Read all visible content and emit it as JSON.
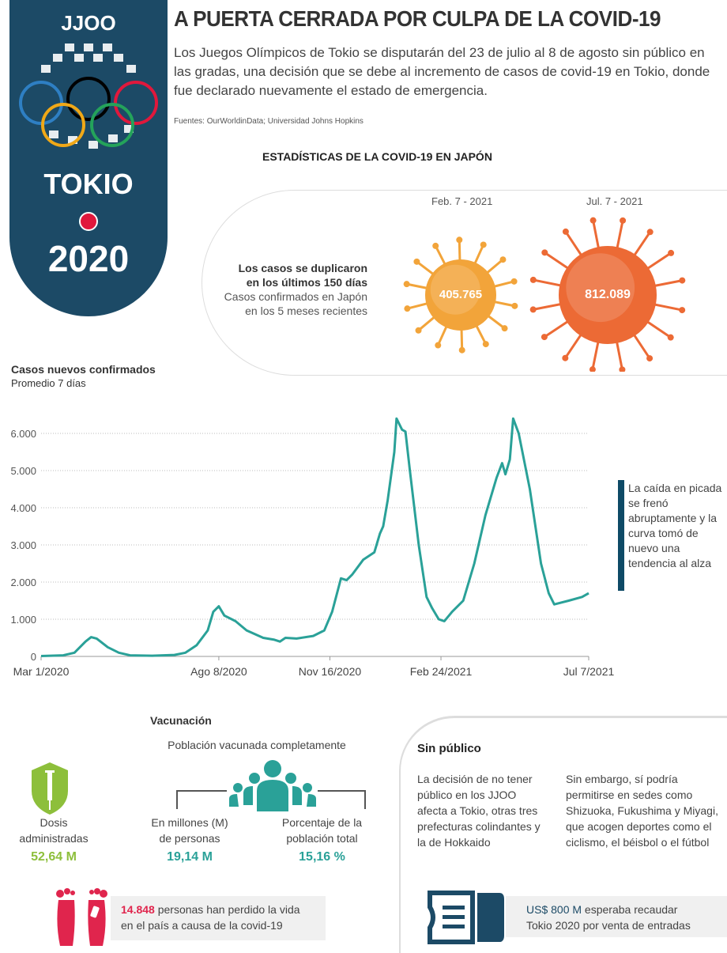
{
  "logo": {
    "top": "JJOO",
    "city": "TOKIO",
    "year": "2020",
    "ring_colors": [
      "#2e7fc3",
      "#000000",
      "#e0183c",
      "#f0a817",
      "#24a35a"
    ]
  },
  "header": {
    "title": "A PUERTA CERRADA POR CULPA DE LA COVID-19",
    "intro": "Los Juegos Olímpicos de Tokio se disputarán del 23 de julio al 8 de agosto sin público en las gradas, una decisión que se debe al incremento de casos de covid-19 en Tokio, donde fue declarado nuevamente el estado de emergencia.",
    "sources": "Fuentes: OurWorldinData; Universidad Johns Hopkins"
  },
  "stats": {
    "title": "ESTADÍSTICAS DE LA COVID-19 EN JAPÓN",
    "headline1": "Los casos se duplicaron",
    "headline2": "en los últimos 150 días",
    "desc1": "Casos confirmados en Japón",
    "desc2": "en los 5 meses recientes",
    "virus": [
      {
        "date": "Feb. 7 - 2021",
        "value": "405.765",
        "color": "#f2a43a"
      },
      {
        "date": "Jul. 7 - 2021",
        "value": "812.089",
        "color": "#ec6a35"
      }
    ]
  },
  "chart_data": {
    "type": "line",
    "title": "Casos nuevos confirmados",
    "subtitle": "Promedio 7 días",
    "x_unit": "days since Mar 1/2020",
    "x_ticks": [
      {
        "day": 0,
        "label": "Mar 1/2020"
      },
      {
        "day": 160,
        "label": "Ago 8/2020"
      },
      {
        "day": 260,
        "label": "Nov 16/2020"
      },
      {
        "day": 360,
        "label": "Feb 24/2021"
      },
      {
        "day": 493,
        "label": "Jul 7/2021"
      }
    ],
    "y_ticks": [
      {
        "v": 0,
        "label": "0"
      },
      {
        "v": 1000,
        "label": "1.000"
      },
      {
        "v": 2000,
        "label": "2.000"
      },
      {
        "v": 3000,
        "label": "3.000"
      },
      {
        "v": 4000,
        "label": "4.000"
      },
      {
        "v": 5000,
        "label": "5.000"
      },
      {
        "v": 6000,
        "label": "6.000"
      }
    ],
    "xlim": [
      0,
      493
    ],
    "ylim": [
      0,
      6000
    ],
    "grid": "horizontal dotted",
    "color": "#2aa198",
    "series": [
      {
        "name": "Casos nuevos (promedio 7 días)",
        "points": [
          [
            0,
            10
          ],
          [
            20,
            30
          ],
          [
            30,
            100
          ],
          [
            40,
            400
          ],
          [
            45,
            520
          ],
          [
            50,
            480
          ],
          [
            60,
            250
          ],
          [
            70,
            100
          ],
          [
            80,
            30
          ],
          [
            100,
            20
          ],
          [
            120,
            40
          ],
          [
            130,
            100
          ],
          [
            140,
            300
          ],
          [
            150,
            700
          ],
          [
            155,
            1200
          ],
          [
            160,
            1350
          ],
          [
            165,
            1100
          ],
          [
            175,
            950
          ],
          [
            185,
            700
          ],
          [
            200,
            500
          ],
          [
            210,
            450
          ],
          [
            215,
            400
          ],
          [
            220,
            500
          ],
          [
            230,
            480
          ],
          [
            245,
            550
          ],
          [
            255,
            700
          ],
          [
            262,
            1200
          ],
          [
            270,
            2100
          ],
          [
            275,
            2050
          ],
          [
            280,
            2200
          ],
          [
            290,
            2600
          ],
          [
            300,
            2800
          ],
          [
            305,
            3300
          ],
          [
            308,
            3500
          ],
          [
            312,
            4200
          ],
          [
            318,
            5500
          ],
          [
            320,
            6400
          ],
          [
            325,
            6100
          ],
          [
            328,
            6050
          ],
          [
            332,
            5000
          ],
          [
            340,
            3000
          ],
          [
            347,
            1600
          ],
          [
            352,
            1300
          ],
          [
            358,
            1000
          ],
          [
            363,
            950
          ],
          [
            370,
            1200
          ],
          [
            380,
            1500
          ],
          [
            390,
            2500
          ],
          [
            400,
            3800
          ],
          [
            410,
            4800
          ],
          [
            415,
            5200
          ],
          [
            418,
            4900
          ],
          [
            422,
            5300
          ],
          [
            425,
            6400
          ],
          [
            430,
            6000
          ],
          [
            440,
            4500
          ],
          [
            450,
            2500
          ],
          [
            457,
            1700
          ],
          [
            462,
            1400
          ],
          [
            475,
            1500
          ],
          [
            487,
            1600
          ],
          [
            493,
            1700
          ]
        ]
      }
    ],
    "annotation": "La caída en picada se frenó abruptamente y la curva tomó de nuevo una tendencia al alza"
  },
  "vaccination": {
    "title": "Vacunación",
    "subtitle": "Población vacunada completamente",
    "doses_label1": "Dosis",
    "doses_label2": "administradas",
    "doses_value": "52,64 M",
    "people_label1": "En millones (M)",
    "people_label2": "de personas",
    "people_value": "19,14 M",
    "pct_label1": "Porcentaje de la",
    "pct_label2": "población total",
    "pct_value": "15,16 %",
    "green": "#8dbf3b",
    "teal": "#2aa198"
  },
  "deaths": {
    "value": "14.848",
    "text1": " personas han perdido la vida",
    "text2": "en el país a causa de la covid-19",
    "color": "#e0254d"
  },
  "no_public": {
    "title": "Sin público",
    "col1": "La decisión de no tener público en los JJOO afecta a Tokio, otras tres prefecturas colindantes y la de Hokkaido",
    "col2": "Sin embargo, sí podría permitirse en sedes como Shizuoka, Fukushima y Miyagi, que acogen deportes como el ciclismo, el béisbol o el fútbol",
    "ticket_value": "US$ 800 M",
    "ticket_text1": " esperaba recaudar",
    "ticket_text2": "Tokio 2020 por venta de entradas"
  }
}
